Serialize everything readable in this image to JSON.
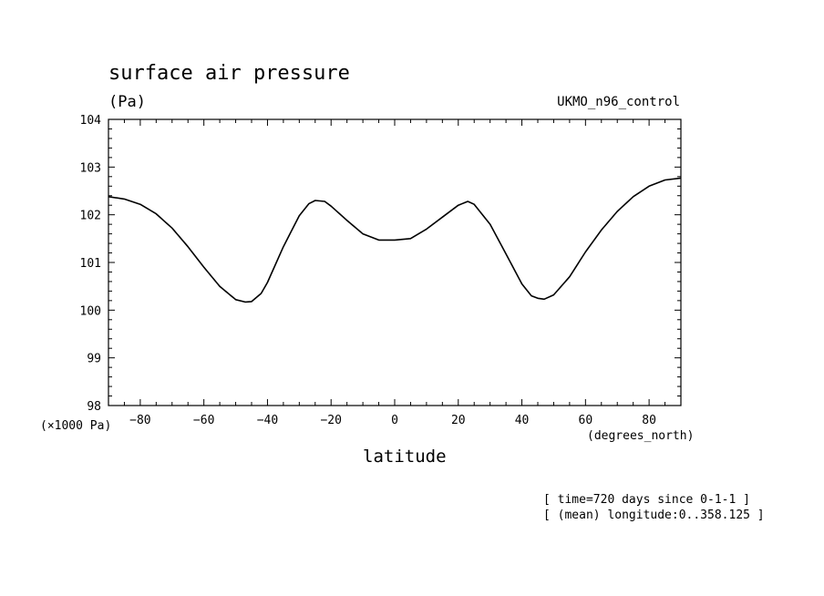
{
  "chart_data": {
    "type": "line",
    "title": "surface air pressure",
    "units_label": "(Pa)",
    "model_label": "UKMO_n96_control",
    "xlabel": "latitude",
    "x_units_label": "(degrees_north)",
    "y_scale_label": "(×1000 Pa)",
    "xlim": [
      -90,
      90
    ],
    "ylim": [
      98,
      104
    ],
    "x_ticks": [
      -80,
      -60,
      -40,
      -20,
      0,
      20,
      40,
      60,
      80
    ],
    "y_ticks": [
      98,
      99,
      100,
      101,
      102,
      103,
      104
    ],
    "grid": false,
    "annotations": [
      "[ time=720 days since 0-1-1 ]",
      "[ (mean) longitude:0..358.125 ]"
    ],
    "series": [
      {
        "x": [
          -90,
          -85,
          -80,
          -75,
          -70,
          -65,
          -60,
          -55,
          -50,
          -47,
          -45,
          -42,
          -40,
          -35,
          -30,
          -27,
          -25,
          -22,
          -20,
          -15,
          -10,
          -5,
          0,
          5,
          10,
          15,
          20,
          23,
          25,
          30,
          35,
          40,
          43,
          45,
          47,
          50,
          55,
          60,
          65,
          70,
          75,
          80,
          85,
          90
        ],
        "y": [
          102.38,
          102.33,
          102.22,
          102.02,
          101.72,
          101.33,
          100.9,
          100.5,
          100.22,
          100.17,
          100.18,
          100.35,
          100.58,
          101.33,
          101.98,
          102.23,
          102.3,
          102.28,
          102.18,
          101.88,
          101.6,
          101.47,
          101.47,
          101.5,
          101.7,
          101.95,
          102.2,
          102.28,
          102.22,
          101.8,
          101.18,
          100.55,
          100.3,
          100.25,
          100.23,
          100.32,
          100.7,
          101.22,
          101.68,
          102.07,
          102.38,
          102.6,
          102.73,
          102.77
        ]
      }
    ]
  }
}
